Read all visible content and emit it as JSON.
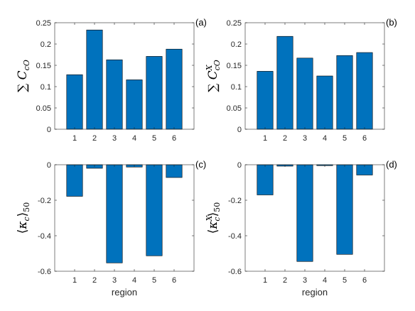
{
  "colors": {
    "bar": "#0072BD",
    "bar_edge": "#000000",
    "axis": "#262626"
  },
  "chart_data": [
    {
      "type": "bar",
      "panel_label": "(a)",
      "categories": [
        "1",
        "2",
        "3",
        "4",
        "5",
        "6"
      ],
      "values": [
        0.128,
        0.233,
        0.163,
        0.116,
        0.171,
        0.188
      ],
      "ylim": [
        0,
        0.25
      ],
      "yticks": [
        0,
        0.05,
        0.1,
        0.15,
        0.2,
        0.25
      ],
      "ytick_labels": [
        "0",
        "0.05",
        "0.1",
        "0.15",
        "0.2",
        "0.25"
      ],
      "ylabel": {
        "prefix": "∑ ",
        "symbol": "C",
        "sub": "cO",
        "sup": ""
      },
      "xlabel": ""
    },
    {
      "type": "bar",
      "panel_label": "(b)",
      "categories": [
        "1",
        "2",
        "3",
        "4",
        "5",
        "6"
      ],
      "values": [
        0.136,
        0.218,
        0.167,
        0.125,
        0.173,
        0.18
      ],
      "ylim": [
        0,
        0.25
      ],
      "yticks": [
        0,
        0.05,
        0.1,
        0.15,
        0.2,
        0.25
      ],
      "ytick_labels": [
        "0",
        "0.05",
        "0.1",
        "0.15",
        "0.2",
        "0.25"
      ],
      "ylabel": {
        "prefix": "∑ ",
        "symbol": "C",
        "sub": "cO",
        "sup": "X"
      },
      "xlabel": ""
    },
    {
      "type": "bar",
      "panel_label": "(c)",
      "categories": [
        "1",
        "2",
        "3",
        "4",
        "5",
        "6"
      ],
      "values": [
        -0.178,
        -0.02,
        -0.553,
        -0.013,
        -0.513,
        -0.072
      ],
      "ylim": [
        -0.6,
        0
      ],
      "yticks": [
        -0.6,
        -0.4,
        -0.2,
        0
      ],
      "ytick_labels": [
        "-0.6",
        "-0.4",
        "-0.2",
        "0"
      ],
      "ylabel": {
        "prefix": "⟨",
        "symbol": "κ",
        "sub": "c",
        "sup": "",
        "suffix": "⟩",
        "suffix_sub": "50"
      },
      "xlabel": "region"
    },
    {
      "type": "bar",
      "panel_label": "(d)",
      "categories": [
        "1",
        "2",
        "3",
        "4",
        "5",
        "6"
      ],
      "values": [
        -0.17,
        -0.008,
        -0.545,
        -0.005,
        -0.505,
        -0.058
      ],
      "ylim": [
        -0.6,
        0
      ],
      "yticks": [
        -0.6,
        -0.4,
        -0.2,
        0
      ],
      "ytick_labels": [
        "-0.6",
        "-0.4",
        "-0.2",
        "0"
      ],
      "ylabel": {
        "prefix": "⟨",
        "symbol": "κ",
        "sub": "c",
        "sup": "X",
        "suffix": "⟩",
        "suffix_sub": "50"
      },
      "xlabel": "region"
    }
  ]
}
